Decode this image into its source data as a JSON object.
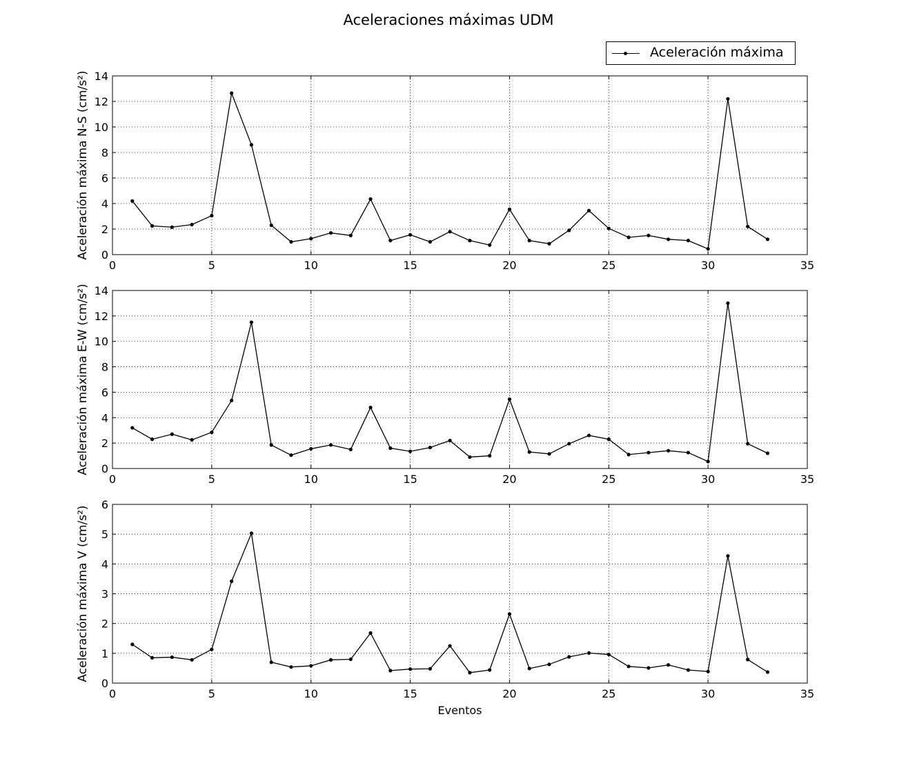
{
  "chart_data": {
    "type": "line",
    "title": "Aceleraciones máximas UDM",
    "legend": {
      "label": "Aceleración máxima",
      "placement": "top-right"
    },
    "grid": true,
    "marker": "dot",
    "line_color": "#000000",
    "xlabel": "Eventos",
    "x": [
      1,
      2,
      3,
      4,
      5,
      6,
      7,
      8,
      9,
      10,
      11,
      12,
      13,
      14,
      15,
      16,
      17,
      18,
      19,
      20,
      21,
      22,
      23,
      24,
      25,
      26,
      27,
      28,
      29,
      30,
      31,
      32,
      33
    ],
    "xlim": [
      0,
      35
    ],
    "xticks": [
      0,
      5,
      10,
      15,
      20,
      25,
      30,
      35
    ],
    "subplots": [
      {
        "ylabel": "Aceleración máxima N-S (cm/s²)",
        "ylim": [
          0,
          14
        ],
        "yticks": [
          0,
          2,
          4,
          6,
          8,
          10,
          12,
          14
        ],
        "values": [
          4.2,
          2.25,
          2.15,
          2.35,
          3.05,
          12.65,
          8.6,
          2.3,
          1.0,
          1.25,
          1.7,
          1.5,
          4.35,
          1.1,
          1.55,
          1.0,
          1.8,
          1.1,
          0.75,
          3.55,
          1.1,
          0.85,
          1.9,
          3.45,
          2.05,
          1.35,
          1.5,
          1.2,
          1.1,
          0.45,
          12.2,
          2.2,
          1.2
        ]
      },
      {
        "ylabel": "Aceleración máxima E-W (cm/s²)",
        "ylim": [
          0,
          14
        ],
        "yticks": [
          0,
          2,
          4,
          6,
          8,
          10,
          12,
          14
        ],
        "values": [
          3.2,
          2.3,
          2.7,
          2.25,
          2.85,
          5.35,
          11.5,
          1.85,
          1.05,
          1.55,
          1.85,
          1.5,
          4.8,
          1.6,
          1.35,
          1.65,
          2.2,
          0.9,
          1.0,
          5.45,
          1.3,
          1.15,
          1.95,
          2.6,
          2.3,
          1.1,
          1.25,
          1.4,
          1.25,
          0.55,
          13.0,
          1.95,
          1.2
        ]
      },
      {
        "ylabel": "Aceleración máxima V (cm/s²)",
        "ylim": [
          0,
          6
        ],
        "yticks": [
          0,
          1,
          2,
          3,
          4,
          5,
          6
        ],
        "values": [
          1.3,
          0.85,
          0.87,
          0.78,
          1.13,
          3.42,
          5.03,
          0.7,
          0.54,
          0.58,
          0.78,
          0.8,
          1.68,
          0.42,
          0.47,
          0.48,
          1.25,
          0.35,
          0.44,
          2.32,
          0.49,
          0.63,
          0.88,
          1.01,
          0.96,
          0.56,
          0.51,
          0.61,
          0.44,
          0.39,
          4.27,
          0.79,
          0.37
        ]
      }
    ]
  }
}
